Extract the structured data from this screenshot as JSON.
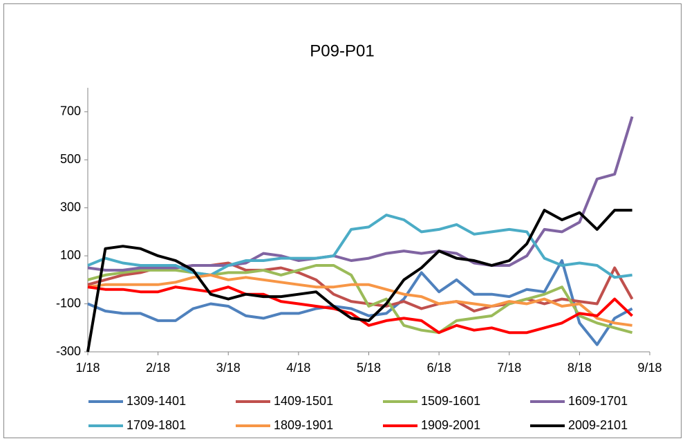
{
  "chart_data": {
    "type": "line",
    "title": "P09-P01",
    "x": [
      0,
      0.25,
      0.5,
      0.75,
      1,
      1.25,
      1.5,
      1.75,
      2,
      2.25,
      2.5,
      2.75,
      3,
      3.25,
      3.5,
      3.75,
      4,
      4.25,
      4.5,
      4.75,
      5,
      5.25,
      5.5,
      5.75,
      6,
      6.25,
      6.5,
      6.75,
      7,
      7.25,
      7.5,
      7.75
    ],
    "xlim": [
      0,
      8
    ],
    "xticks": [
      {
        "value": 0,
        "label": "1/18"
      },
      {
        "value": 1,
        "label": "2/18"
      },
      {
        "value": 2,
        "label": "3/18"
      },
      {
        "value": 3,
        "label": "4/18"
      },
      {
        "value": 4,
        "label": "5/18"
      },
      {
        "value": 5,
        "label": "6/18"
      },
      {
        "value": 6,
        "label": "7/18"
      },
      {
        "value": 7,
        "label": "8/18"
      },
      {
        "value": 8,
        "label": "9/18"
      }
    ],
    "ylim": [
      -300,
      800
    ],
    "yticks": [
      -300,
      -100,
      100,
      300,
      500,
      700
    ],
    "legend": "bottom",
    "series": [
      {
        "name": "1309-1401",
        "color": "#4f81bd",
        "values": [
          -100,
          -130,
          -140,
          -140,
          -170,
          -170,
          -120,
          -100,
          -110,
          -150,
          -160,
          -140,
          -140,
          -120,
          -110,
          -120,
          -150,
          -140,
          -80,
          30,
          -50,
          0,
          -60,
          -60,
          -70,
          -40,
          -50,
          80,
          -180,
          -270,
          -160,
          -120
        ]
      },
      {
        "name": "1409-1501",
        "color": "#c0504d",
        "values": [
          -20,
          0,
          20,
          30,
          50,
          50,
          60,
          60,
          70,
          40,
          40,
          50,
          30,
          0,
          -60,
          -90,
          -100,
          -110,
          -90,
          -120,
          -100,
          -90,
          -130,
          -110,
          -100,
          -80,
          -100,
          -80,
          -90,
          -100,
          50,
          -80
        ]
      },
      {
        "name": "1509-1601",
        "color": "#9bbb59",
        "values": [
          0,
          20,
          30,
          40,
          40,
          40,
          30,
          20,
          30,
          30,
          40,
          20,
          40,
          60,
          60,
          20,
          -110,
          -80,
          -190,
          -210,
          -220,
          -170,
          -160,
          -150,
          -100,
          -80,
          -60,
          -30,
          -150,
          -180,
          -200,
          -220
        ]
      },
      {
        "name": "1609-1701",
        "color": "#8064a2",
        "values": [
          50,
          40,
          40,
          50,
          50,
          50,
          60,
          60,
          60,
          70,
          110,
          100,
          80,
          90,
          100,
          80,
          90,
          110,
          120,
          110,
          120,
          110,
          70,
          60,
          60,
          100,
          210,
          200,
          240,
          420,
          440,
          680
        ]
      },
      {
        "name": "1709-1801",
        "color": "#4bacc6",
        "values": [
          60,
          90,
          70,
          60,
          60,
          60,
          30,
          20,
          60,
          80,
          80,
          90,
          90,
          90,
          100,
          210,
          220,
          270,
          250,
          200,
          210,
          230,
          190,
          200,
          210,
          200,
          90,
          60,
          70,
          60,
          10,
          20
        ]
      },
      {
        "name": "1809-1901",
        "color": "#f79646",
        "values": [
          -30,
          -20,
          -20,
          -20,
          -20,
          -10,
          10,
          20,
          0,
          10,
          0,
          -10,
          -20,
          -30,
          -30,
          -20,
          -20,
          -40,
          -60,
          -70,
          -100,
          -90,
          -100,
          -110,
          -90,
          -100,
          -80,
          -110,
          -100,
          -160,
          -180,
          -190
        ]
      },
      {
        "name": "1909-2001",
        "color": "#ff0000",
        "values": [
          -30,
          -40,
          -40,
          -50,
          -50,
          -30,
          -40,
          -50,
          -30,
          -60,
          -60,
          -90,
          -100,
          -110,
          -120,
          -140,
          -190,
          -170,
          -160,
          -170,
          -220,
          -190,
          -210,
          -200,
          -220,
          -220,
          -200,
          -180,
          -140,
          -150,
          -80,
          -150
        ]
      },
      {
        "name": "2009-2101",
        "color": "#000000",
        "values": [
          -300,
          130,
          140,
          130,
          100,
          80,
          40,
          -60,
          -80,
          -60,
          -70,
          -70,
          -60,
          -50,
          -110,
          -160,
          -170,
          -100,
          0,
          50,
          120,
          90,
          80,
          60,
          80,
          150,
          290,
          250,
          280,
          210,
          290,
          290
        ]
      }
    ]
  }
}
